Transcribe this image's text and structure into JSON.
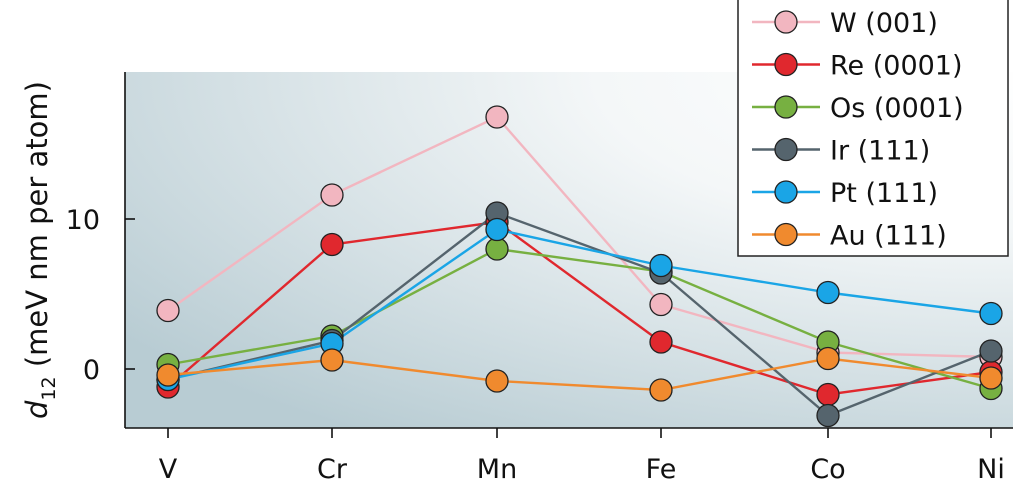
{
  "chart_data": {
    "type": "line",
    "categories": [
      "V",
      "Cr",
      "Mn",
      "Fe",
      "Co",
      "Ni"
    ],
    "ylabel_main": "d",
    "ylabel_sub": "12",
    "ylabel_rest": " (meV nm per atom)",
    "yticks": [
      0,
      10
    ],
    "ylim": [
      -4,
      20
    ],
    "legend_position": "top-right",
    "series": [
      {
        "name": "W (001)",
        "color": "#f2b6c0",
        "values": [
          3.9,
          11.6,
          16.8,
          4.3,
          1.1,
          0.8
        ]
      },
      {
        "name": "Re (0001)",
        "color": "#e0282e",
        "values": [
          -1.2,
          8.3,
          9.8,
          1.8,
          -1.7,
          -0.2
        ]
      },
      {
        "name": "Os (0001)",
        "color": "#77b041",
        "values": [
          0.3,
          2.2,
          8.0,
          6.5,
          1.8,
          -1.3
        ]
      },
      {
        "name": "Ir (111)",
        "color": "#55646d",
        "values": [
          -0.7,
          1.9,
          10.4,
          6.4,
          -3.1,
          1.2
        ]
      },
      {
        "name": "Pt (111)",
        "color": "#1aa5e6",
        "values": [
          -0.7,
          1.7,
          9.3,
          6.9,
          5.1,
          3.7
        ]
      },
      {
        "name": "Au (111)",
        "color": "#f08a2e",
        "values": [
          -0.4,
          0.6,
          -0.8,
          -1.4,
          0.7,
          -0.6
        ]
      }
    ]
  }
}
